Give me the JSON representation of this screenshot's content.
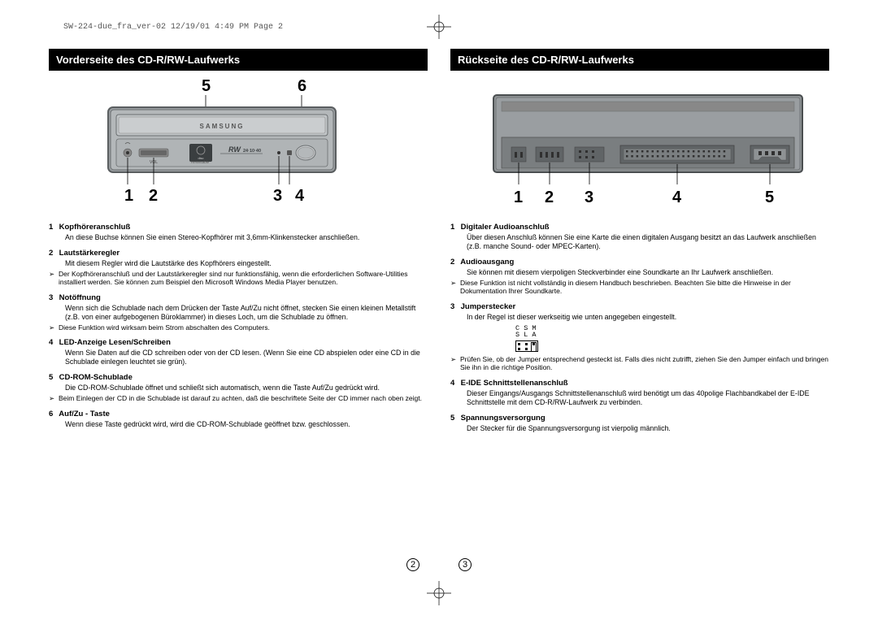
{
  "header": "SW-224-due_fra_ver-02  12/19/01 4:49 PM  Page 2",
  "left": {
    "title": "Vorderseite des CD-R/RW-Laufwerks",
    "topCallouts": [
      "5",
      "6"
    ],
    "bottomCallouts": [
      "1",
      "2",
      "3",
      "4"
    ],
    "device": {
      "brand": "SAMSUNG",
      "rwLabel": "RW",
      "rwSpeed": "24·10·40",
      "bodyColor": "#9a9ea1",
      "faceColor": "#b4b8ba",
      "trayColor": "#c0c4c6",
      "borderColor": "#5a5e60",
      "labelColor": "#3a3e40"
    },
    "items": [
      {
        "num": "1",
        "head": "Kopfhöreranschluß",
        "body": "An diese Buchse können Sie einen Stereo-Kopfhörer mit 3,6mm-Klinkenstecker anschließen."
      },
      {
        "num": "2",
        "head": "Lautstärkeregler",
        "body": "Mit diesem Regler wird die Lautstärke des Kopfhörers eingestellt.",
        "notes": [
          "Der Kopfhöreranschluß und der Lautstärkeregler sind nur funktionsfähig, wenn die erforderlichen Software-Utilities installiert werden. Sie können zum Beispiel den Microsoft Windows Media Player benutzen."
        ]
      },
      {
        "num": "3",
        "head": "Notöffnung",
        "body": "Wenn sich die Schublade nach dem Drücken der Taste Auf/Zu nicht öffnet, stecken Sie einen kleinen Metallstift (z.B. von einer aufgebogenen Büroklammer) in dieses Loch, um die Schublade zu öffnen.",
        "notes": [
          "Diese Funktion wird wirksam beim Strom abschalten des Computers."
        ]
      },
      {
        "num": "4",
        "head": "LED-Anzeige Lesen/Schreiben",
        "body": "Wenn Sie Daten auf die CD schreiben oder von der CD lesen. (Wenn Sie eine CD abspielen oder eine CD in die Schublade einlegen leuchtet sie grün)."
      },
      {
        "num": "5",
        "head": "CD-ROM-Schublade",
        "body": "Die CD-ROM-Schublade öffnet und schließt sich automatisch, wenn die Taste Auf/Zu gedrückt wird.",
        "notes": [
          "Beim Einlegen der CD in die Schublade ist darauf zu achten, daß die beschriftete Seite der CD immer nach oben zeigt."
        ]
      },
      {
        "num": "6",
        "head": "Auf/Zu - Taste",
        "body": "Wenn diese Taste gedrückt wird, wird die CD-ROM-Schublade geöffnet bzw. geschlossen."
      }
    ],
    "pageNum": "2"
  },
  "right": {
    "title": "Rückseite des CD-R/RW-Laufwerks",
    "bottomCallouts": [
      "1",
      "2",
      "3",
      "4",
      "5"
    ],
    "device": {
      "bodyColor": "#8e9294",
      "panelColor": "#7a7e80",
      "borderColor": "#4a4e50",
      "pinColor": "#303030"
    },
    "items": [
      {
        "num": "1",
        "head": "Digitaler Audioanschluß",
        "body": "Über diesen Anschluß können Sie eine Karte die einen digitalen Ausgang besitzt an das Laufwerk anschließen (z.B. manche Sound- oder MPEC-Karten)."
      },
      {
        "num": "2",
        "head": "Audioausgang",
        "body": "Sie können mit diesem vierpoligen Steckverbinder eine Soundkarte an Ihr Laufwerk anschließen.",
        "notes": [
          "Diese Funktion ist nicht vollständig in diesem Handbuch beschrieben. Beachten Sie bitte die Hinweise in der Dokumentation Ihrer Soundkarte."
        ]
      },
      {
        "num": "3",
        "head": "Jumperstecker",
        "body": "In der Regel ist dieser werkseitig wie unten angegeben eingestellt.",
        "jumper": {
          "row1": "C S M",
          "row2": "S L A"
        },
        "notes": [
          "Prüfen Sie, ob der Jumper entsprechend gesteckt ist. Falls dies nicht zutrifft, ziehen Sie den Jumper einfach und bringen Sie ihn in die richtige Position."
        ]
      },
      {
        "num": "4",
        "head": "E-IDE Schnittstellenanschluß",
        "body": "Dieser Eingangs/Ausgangs Schnittstellenanschluß wird benötigt um das 40polige Flachbandkabel der E-IDE Schnittstelle mit dem CD-R/RW-Laufwerk zu verbinden."
      },
      {
        "num": "5",
        "head": "Spannungsversorgung",
        "body": "Der Stecker für die Spannungsversorgung ist vierpolig männlich."
      }
    ],
    "pageNum": "3"
  }
}
